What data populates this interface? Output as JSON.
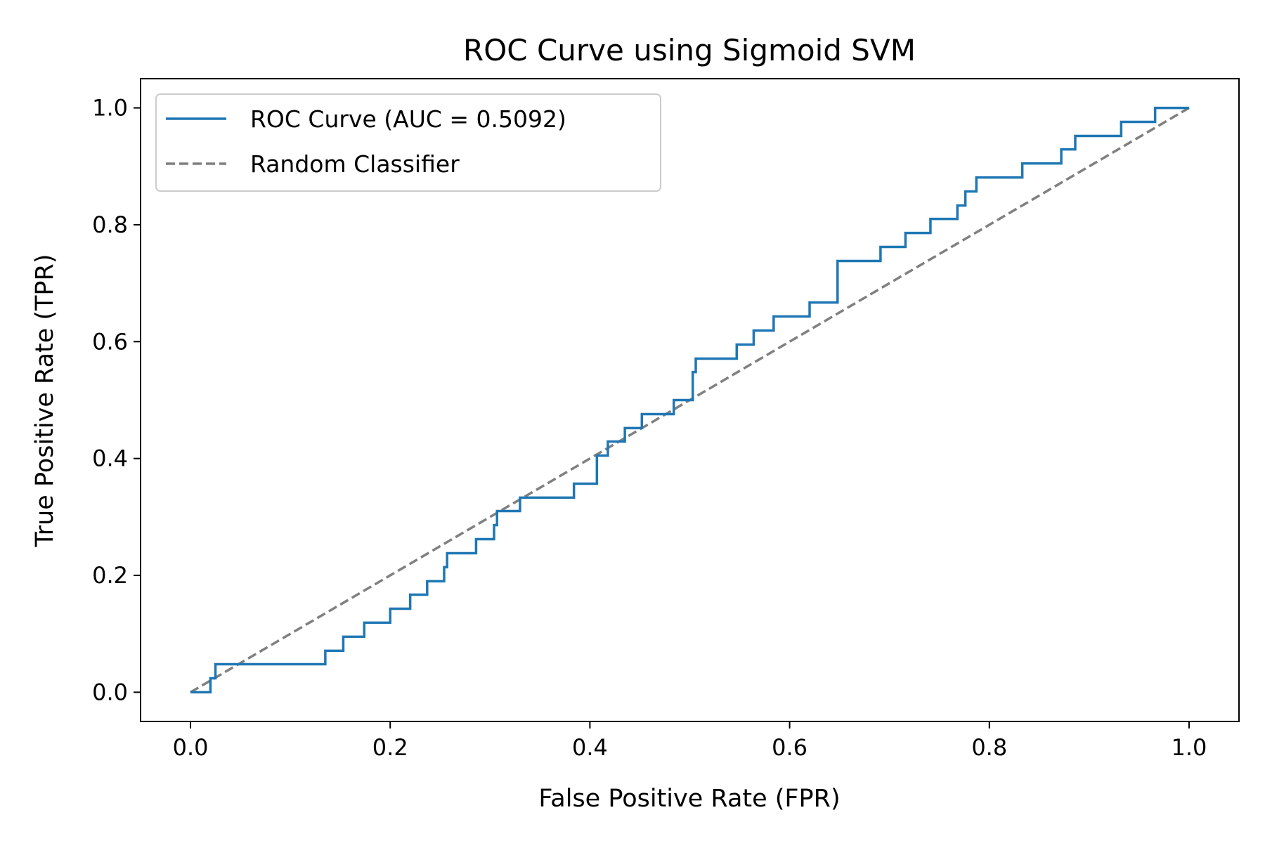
{
  "chart_data": {
    "type": "line",
    "title": "ROC Curve using Sigmoid SVM",
    "xlabel": "False Positive Rate (FPR)",
    "ylabel": "True Positive Rate (TPR)",
    "xlim": [
      -0.05,
      1.05
    ],
    "ylim": [
      -0.05,
      1.05
    ],
    "xticks": [
      "0.0",
      "0.2",
      "0.4",
      "0.6",
      "0.8",
      "1.0"
    ],
    "yticks": [
      "0.0",
      "0.2",
      "0.4",
      "0.6",
      "0.8",
      "1.0"
    ],
    "grid": false,
    "legend_position": "upper-left",
    "series": [
      {
        "name": "ROC Curve (AUC = 0.5092)",
        "color": "#1f77b4",
        "style": "solid",
        "x": [
          0,
          0.02,
          0.02,
          0.025,
          0.025,
          0.135,
          0.135,
          0.153,
          0.153,
          0.174,
          0.174,
          0.2,
          0.2,
          0.22,
          0.22,
          0.237,
          0.237,
          0.254,
          0.254,
          0.257,
          0.257,
          0.286,
          0.286,
          0.304,
          0.304,
          0.307,
          0.307,
          0.33,
          0.33,
          0.384,
          0.384,
          0.407,
          0.407,
          0.418,
          0.418,
          0.435,
          0.435,
          0.452,
          0.452,
          0.484,
          0.484,
          0.503,
          0.503,
          0.506,
          0.506,
          0.547,
          0.547,
          0.564,
          0.564,
          0.584,
          0.584,
          0.62,
          0.62,
          0.648,
          0.648,
          0.691,
          0.691,
          0.716,
          0.716,
          0.741,
          0.741,
          0.768,
          0.768,
          0.776,
          0.776,
          0.787,
          0.787,
          0.833,
          0.833,
          0.872,
          0.872,
          0.886,
          0.886,
          0.932,
          0.932,
          0.966,
          0.966,
          1.0
        ],
        "y": [
          0,
          0,
          0.024,
          0.024,
          0.048,
          0.048,
          0.071,
          0.071,
          0.095,
          0.095,
          0.119,
          0.119,
          0.143,
          0.143,
          0.167,
          0.167,
          0.19,
          0.19,
          0.214,
          0.214,
          0.238,
          0.238,
          0.262,
          0.262,
          0.286,
          0.286,
          0.31,
          0.31,
          0.333,
          0.333,
          0.357,
          0.357,
          0.405,
          0.405,
          0.429,
          0.429,
          0.452,
          0.452,
          0.476,
          0.476,
          0.5,
          0.5,
          0.548,
          0.548,
          0.571,
          0.571,
          0.595,
          0.595,
          0.619,
          0.619,
          0.643,
          0.643,
          0.667,
          0.667,
          0.738,
          0.738,
          0.762,
          0.762,
          0.786,
          0.786,
          0.81,
          0.81,
          0.833,
          0.833,
          0.857,
          0.857,
          0.881,
          0.881,
          0.905,
          0.905,
          0.929,
          0.929,
          0.952,
          0.952,
          0.976,
          0.976,
          1.0,
          1.0
        ]
      },
      {
        "name": "Random Classifier",
        "color": "#808080",
        "style": "dashed",
        "x": [
          0,
          1
        ],
        "y": [
          0,
          1
        ]
      }
    ]
  }
}
